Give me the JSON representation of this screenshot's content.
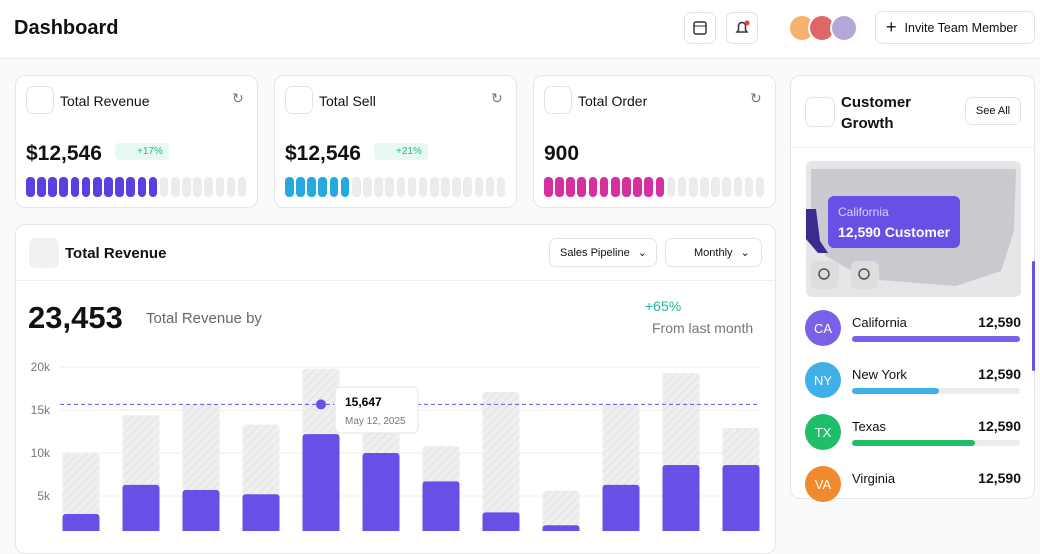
{
  "header": {
    "title": "Dashboard",
    "button": "Invite Team Member"
  },
  "stats": [
    {
      "title": "Total Revenue",
      "value": "$12,546",
      "change": "+17%",
      "filled": 12,
      "segments": 20,
      "color": "#5b3fe0"
    },
    {
      "title": "Total Sell",
      "value": "$12,546",
      "change": "+21%",
      "filled": 6,
      "segments": 20,
      "color": "#26a9e0"
    },
    {
      "title": "Total Order",
      "value": "900",
      "filled": 11,
      "segments": 20,
      "color": "#d62fa0"
    }
  ],
  "revenue": {
    "title": "Total Revenue",
    "filters": [
      "Sales Pipeline",
      "Monthly"
    ],
    "total": "23,453",
    "total_label": "Total Revenue by",
    "change": "+65%",
    "change_label": "From last month",
    "chart": {
      "type": "bar",
      "ylim": [
        0,
        20000
      ],
      "yticks": [
        {
          "value": 5000,
          "label": "5k"
        },
        {
          "value": 10000,
          "label": "10k"
        },
        {
          "value": 15000,
          "label": "15k"
        },
        {
          "value": 20000,
          "label": "20k"
        }
      ],
      "series": [
        {
          "color": "#ececec",
          "values": [
            10000,
            14400,
            15700,
            13300,
            19800,
            15000,
            10800,
            17100,
            5600,
            15700,
            19300,
            12900
          ]
        },
        {
          "color": "#6a4fe6",
          "values": [
            2900,
            6300,
            5700,
            5200,
            12200,
            10000,
            6700,
            3100,
            1600,
            6300,
            8600,
            8600
          ]
        }
      ],
      "tooltip": {
        "value": {
          "value": 15647,
          "label": "15,647"
        },
        "date": "May 12, 2025"
      }
    }
  },
  "customers": {
    "title": "Customer Growth",
    "button": "See All",
    "map_tooltip": {
      "state": "California",
      "value": "12,590 Customer"
    },
    "rows": [
      {
        "code": "CA",
        "state": "California",
        "value": "12,590",
        "progress": 100,
        "color": "#7b61e8"
      },
      {
        "code": "NY",
        "state": "New York",
        "value": "12,590",
        "progress": 52,
        "color": "#3fb0e8"
      },
      {
        "code": "TX",
        "state": "Texas",
        "value": "12,590",
        "progress": 73,
        "color": "#1fbf6a"
      },
      {
        "code": "VA",
        "state": "Virginia",
        "value": "12,590",
        "color": "#f08a2c"
      }
    ]
  }
}
